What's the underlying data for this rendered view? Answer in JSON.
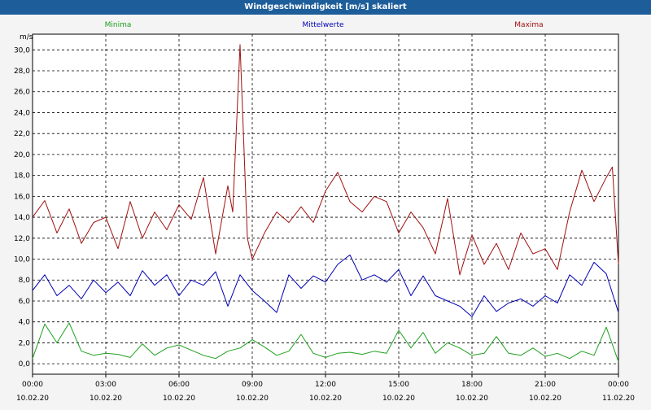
{
  "window": {
    "title": "Windgeschwindigkeit [m/s] skaliert"
  },
  "colors": {
    "minima": "#1fa01f",
    "mittelwerte": "#0000b4",
    "maxima": "#a01010",
    "grid": "#000000",
    "background": "#f4f4f4"
  },
  "chart_data": {
    "type": "line",
    "title": "Windgeschwindigkeit [m/s] skaliert",
    "ylabel": "m/s",
    "xlabel": "",
    "ylim": [
      -1,
      31.5
    ],
    "y_ticks": [
      "0,0",
      "2,0",
      "4,0",
      "6,0",
      "8,0",
      "10,0",
      "12,0",
      "14,0",
      "16,0",
      "18,0",
      "20,0",
      "22,0",
      "24,0",
      "26,0",
      "28,0",
      "30,0"
    ],
    "x_ticks": [
      {
        "time": "00:00",
        "date": "10.02.20"
      },
      {
        "time": "03:00",
        "date": "10.02.20"
      },
      {
        "time": "06:00",
        "date": "10.02.20"
      },
      {
        "time": "09:00",
        "date": "10.02.20"
      },
      {
        "time": "12:00",
        "date": "10.02.20"
      },
      {
        "time": "15:00",
        "date": "10.02.20"
      },
      {
        "time": "18:00",
        "date": "10.02.20"
      },
      {
        "time": "21:00",
        "date": "10.02.20"
      },
      {
        "time": "00:00",
        "date": "11.02.20"
      }
    ],
    "x_range_hours": [
      0,
      24
    ],
    "grid": true,
    "legend_position": "top",
    "series": [
      {
        "name": "Minima",
        "color": "#1fa01f",
        "x": [
          0,
          0.5,
          1,
          1.5,
          2,
          2.5,
          3,
          3.5,
          4,
          4.5,
          5,
          5.5,
          6,
          6.5,
          7,
          7.5,
          8,
          8.5,
          9,
          9.5,
          10,
          10.5,
          11,
          11.5,
          12,
          12.5,
          13,
          13.5,
          14,
          14.5,
          15,
          15.5,
          16,
          16.5,
          17,
          17.5,
          18,
          18.5,
          19,
          19.5,
          20,
          20.5,
          21,
          21.5,
          22,
          22.5,
          23,
          23.5,
          24
        ],
        "values": [
          0.5,
          3.8,
          2.0,
          3.9,
          1.2,
          0.8,
          1.0,
          0.9,
          0.6,
          1.9,
          0.8,
          1.5,
          1.8,
          1.3,
          0.8,
          0.5,
          1.2,
          1.5,
          2.3,
          1.6,
          0.8,
          1.2,
          2.8,
          1.0,
          0.6,
          1.0,
          1.1,
          0.9,
          1.2,
          1.0,
          3.2,
          1.5,
          3.0,
          1.0,
          2.0,
          1.5,
          0.8,
          1.0,
          2.6,
          1.0,
          0.8,
          1.5,
          0.7,
          1.0,
          0.5,
          1.2,
          0.8,
          3.5,
          0.2
        ]
      },
      {
        "name": "Mittelwerte",
        "color": "#0000b4",
        "x": [
          0,
          0.5,
          1,
          1.5,
          2,
          2.5,
          3,
          3.5,
          4,
          4.5,
          5,
          5.5,
          6,
          6.5,
          7,
          7.5,
          8,
          8.5,
          9,
          9.5,
          10,
          10.5,
          11,
          11.5,
          12,
          12.5,
          13,
          13.5,
          14,
          14.5,
          15,
          15.5,
          16,
          16.5,
          17,
          17.5,
          18,
          18.5,
          19,
          19.5,
          20,
          20.5,
          21,
          21.5,
          22,
          22.5,
          23,
          23.5,
          24
        ],
        "values": [
          7.0,
          8.5,
          6.5,
          7.5,
          6.2,
          8.0,
          6.8,
          7.8,
          6.5,
          8.9,
          7.5,
          8.5,
          6.5,
          8.0,
          7.5,
          8.8,
          5.5,
          8.5,
          7.0,
          6.0,
          4.9,
          8.5,
          7.2,
          8.4,
          7.8,
          9.5,
          10.4,
          8.0,
          8.5,
          7.8,
          9.0,
          6.5,
          8.4,
          6.5,
          6.0,
          5.5,
          4.5,
          6.5,
          5.0,
          5.8,
          6.2,
          5.5,
          6.5,
          5.8,
          8.5,
          7.5,
          9.7,
          8.6,
          4.9
        ]
      },
      {
        "name": "Maxima",
        "color": "#a01010",
        "x": [
          0,
          0.5,
          1,
          1.5,
          2,
          2.5,
          3,
          3.5,
          4,
          4.5,
          5,
          5.5,
          6,
          6.5,
          7,
          7.5,
          8,
          8.2,
          8.5,
          8.8,
          9,
          9.5,
          10,
          10.5,
          11,
          11.5,
          12,
          12.5,
          13,
          13.5,
          14,
          14.5,
          15,
          15.5,
          16,
          16.5,
          17,
          17.5,
          18,
          18.5,
          19,
          19.5,
          20,
          20.5,
          21,
          21.5,
          22,
          22.5,
          23,
          23.5,
          23.75,
          24
        ],
        "values": [
          14.0,
          15.6,
          12.5,
          14.8,
          11.5,
          13.5,
          14.0,
          11.0,
          15.5,
          12.0,
          14.5,
          12.8,
          15.2,
          13.8,
          17.8,
          10.5,
          17.0,
          14.5,
          30.5,
          12.0,
          10.0,
          12.5,
          14.5,
          13.5,
          15.0,
          13.5,
          16.5,
          18.3,
          15.5,
          14.5,
          16.0,
          15.5,
          12.5,
          14.5,
          13.0,
          10.5,
          15.8,
          8.5,
          12.3,
          9.5,
          11.5,
          9.0,
          12.5,
          10.5,
          11.0,
          9.0,
          14.5,
          18.5,
          15.5,
          17.8,
          18.8,
          9.5
        ]
      }
    ]
  }
}
